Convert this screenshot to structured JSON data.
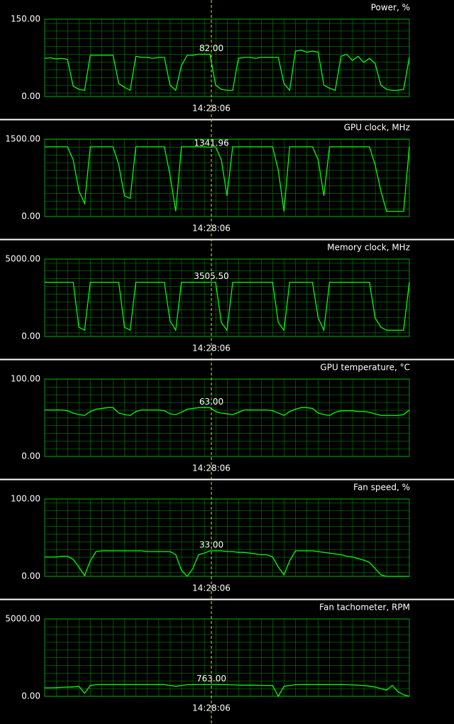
{
  "chart_data": [
    {
      "type": "line",
      "title": "Power, %",
      "color": "#00ff00",
      "values": [
        74,
        75,
        73,
        74,
        72,
        20,
        14,
        12,
        80,
        80,
        80,
        80,
        80,
        25,
        18,
        12,
        78,
        76,
        76,
        74,
        76,
        76,
        22,
        12,
        60,
        80,
        80,
        82,
        82,
        82,
        22,
        14,
        12,
        12,
        74,
        76,
        76,
        74,
        76,
        76,
        76,
        76,
        25,
        12,
        88,
        90,
        86,
        88,
        86,
        22,
        16,
        12,
        78,
        82,
        70,
        78,
        66,
        74,
        64,
        22,
        14,
        12,
        12,
        14,
        76
      ],
      "ylim": [
        0,
        150
      ],
      "yticks": [
        {
          "value": 0,
          "label": "0.00"
        },
        {
          "value": 150,
          "label": "150.00"
        }
      ],
      "cursor": {
        "time": "14:28:06",
        "value": 82,
        "label": "82.00"
      }
    },
    {
      "type": "line",
      "title": "GPU clock, MHz",
      "color": "#00ff00",
      "values": [
        1350,
        1350,
        1350,
        1350,
        1350,
        1100,
        500,
        250,
        1350,
        1350,
        1350,
        1350,
        1350,
        1000,
        400,
        350,
        1350,
        1350,
        1350,
        1350,
        1350,
        1350,
        800,
        100,
        1350,
        1350,
        1350,
        1350,
        1350,
        1342,
        1350,
        1100,
        400,
        1350,
        1350,
        1350,
        1350,
        1350,
        1350,
        1350,
        1350,
        900,
        100,
        1350,
        1350,
        1350,
        1350,
        1350,
        1100,
        400,
        1350,
        1350,
        1350,
        1350,
        1350,
        1350,
        1350,
        1350,
        1000,
        500,
        100,
        100,
        100,
        100,
        1350
      ],
      "ylim": [
        0,
        1500
      ],
      "yticks": [
        {
          "value": 0,
          "label": "0.00"
        },
        {
          "value": 1500,
          "label": "1500.00"
        }
      ],
      "cursor": {
        "time": "14:28:06",
        "value": 1341.96,
        "label": "1341.96"
      }
    },
    {
      "type": "line",
      "title": "Memory clock, MHz",
      "color": "#00ff00",
      "values": [
        3505,
        3505,
        3505,
        3505,
        3505,
        3505,
        600,
        400,
        3505,
        3505,
        3505,
        3505,
        3505,
        3505,
        600,
        400,
        3505,
        3505,
        3505,
        3505,
        3505,
        3505,
        1000,
        400,
        3505,
        3505,
        3505,
        3505,
        3505,
        3505,
        3505,
        900,
        400,
        3505,
        3505,
        3505,
        3505,
        3505,
        3505,
        3505,
        3505,
        900,
        400,
        3505,
        3505,
        3505,
        3505,
        3505,
        1200,
        400,
        3505,
        3505,
        3505,
        3505,
        3505,
        3505,
        3505,
        3505,
        1200,
        600,
        400,
        400,
        400,
        400,
        3505
      ],
      "ylim": [
        0,
        5000
      ],
      "yticks": [
        {
          "value": 0,
          "label": "0.00"
        },
        {
          "value": 5000,
          "label": "5000.00"
        }
      ],
      "cursor": {
        "time": "14:28:06",
        "value": 3505.5,
        "label": "3505.50"
      }
    },
    {
      "type": "line",
      "title": "GPU temperature, °C",
      "color": "#00ff00",
      "values": [
        60,
        60,
        60,
        60,
        59,
        56,
        54,
        53,
        58,
        61,
        62,
        63,
        63,
        56,
        54,
        53,
        58,
        60,
        60,
        60,
        60,
        59,
        55,
        54,
        57,
        61,
        62,
        63,
        63,
        63,
        58,
        56,
        55,
        54,
        57,
        60,
        60,
        60,
        60,
        60,
        59,
        56,
        53,
        58,
        61,
        63,
        63,
        62,
        56,
        54,
        53,
        57,
        59,
        59,
        59,
        58,
        58,
        57,
        55,
        53,
        53,
        53,
        53,
        54,
        60
      ],
      "ylim": [
        0,
        100
      ],
      "yticks": [
        {
          "value": 0,
          "label": "0.00"
        },
        {
          "value": 100,
          "label": "100.00"
        }
      ],
      "cursor": {
        "time": "14:28:06",
        "value": 63,
        "label": "63.00"
      }
    },
    {
      "type": "line",
      "title": "Fan speed, %",
      "color": "#00ff00",
      "values": [
        25,
        25,
        25,
        26,
        26,
        22,
        12,
        1,
        20,
        32,
        33,
        33,
        33,
        33,
        33,
        33,
        33,
        33,
        32,
        32,
        32,
        32,
        32,
        28,
        8,
        0,
        10,
        28,
        30,
        33,
        33,
        33,
        32,
        32,
        31,
        31,
        30,
        29,
        28,
        28,
        25,
        12,
        2,
        20,
        33,
        33,
        33,
        33,
        32,
        31,
        30,
        29,
        28,
        26,
        25,
        23,
        21,
        18,
        10,
        2,
        0,
        0,
        0,
        0,
        0
      ],
      "ylim": [
        0,
        100
      ],
      "yticks": [
        {
          "value": 0,
          "label": "0.00"
        },
        {
          "value": 100,
          "label": "100.00"
        }
      ],
      "cursor": {
        "time": "14:28:06",
        "value": 33,
        "label": "33.00"
      }
    },
    {
      "type": "line",
      "title": "Fan tachometer, RPM",
      "color": "#00ff00",
      "values": [
        550,
        550,
        560,
        580,
        600,
        600,
        650,
        200,
        700,
        750,
        760,
        760,
        760,
        760,
        760,
        760,
        760,
        760,
        760,
        760,
        760,
        760,
        700,
        650,
        700,
        750,
        760,
        763,
        763,
        763,
        763,
        760,
        750,
        740,
        730,
        720,
        720,
        720,
        710,
        700,
        700,
        0,
        650,
        700,
        750,
        760,
        760,
        760,
        760,
        760,
        760,
        760,
        760,
        750,
        740,
        720,
        700,
        650,
        600,
        500,
        400,
        700,
        300,
        100,
        0
      ],
      "ylim": [
        0,
        5000
      ],
      "yticks": [
        {
          "value": 0,
          "label": "0.00"
        },
        {
          "value": 5000,
          "label": "5000.00"
        }
      ],
      "cursor": {
        "time": "14:28:06",
        "value": 763,
        "label": "763.00"
      }
    }
  ]
}
